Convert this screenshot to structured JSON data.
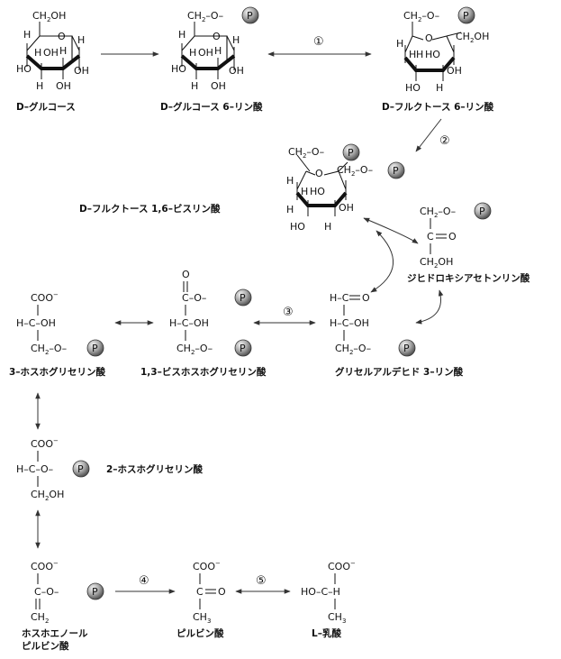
{
  "atoms": {
    "oh": "OH",
    "ch2oh_c": "CH",
    "ch2oh_oh": "OH",
    "ch2_c": "CH",
    "sub2": "2",
    "h": "H",
    "ho": "HO",
    "o": "O",
    "p": "P",
    "c": "C",
    "coo": "COO",
    "minus": "−",
    "ch3": "CH",
    "sub3": "3",
    "dash": "–",
    "eq": "="
  },
  "molecules": {
    "glucose": {
      "name": "D–グルコース"
    },
    "glucose6p": {
      "name": "D–グルコース 6–リン酸"
    },
    "fructose6p": {
      "name": "D–フルクトース 6–リン酸"
    },
    "fructose16bp": {
      "name": "D–フルクトース 1,6–ビスリン酸"
    },
    "dhap": {
      "name": "ジヒドロキシアセトンリン酸"
    },
    "g3p": {
      "name": "グリセルアルデヒド 3–リン酸"
    },
    "bpg13": {
      "name": "1,3–ビスホスホグリセリン酸"
    },
    "pg3": {
      "name": "3–ホスホグリセリン酸"
    },
    "pg2": {
      "name": "2–ホスホグリセリン酸"
    },
    "pep": {
      "name_line1": "ホスホエノール",
      "name_line2": "ピルビン酸"
    },
    "pyruvate": {
      "name": "ピルビン酸"
    },
    "lactate": {
      "name": "L–乳酸"
    }
  },
  "steps": [
    "①",
    "②",
    "③",
    "④",
    "⑤"
  ]
}
